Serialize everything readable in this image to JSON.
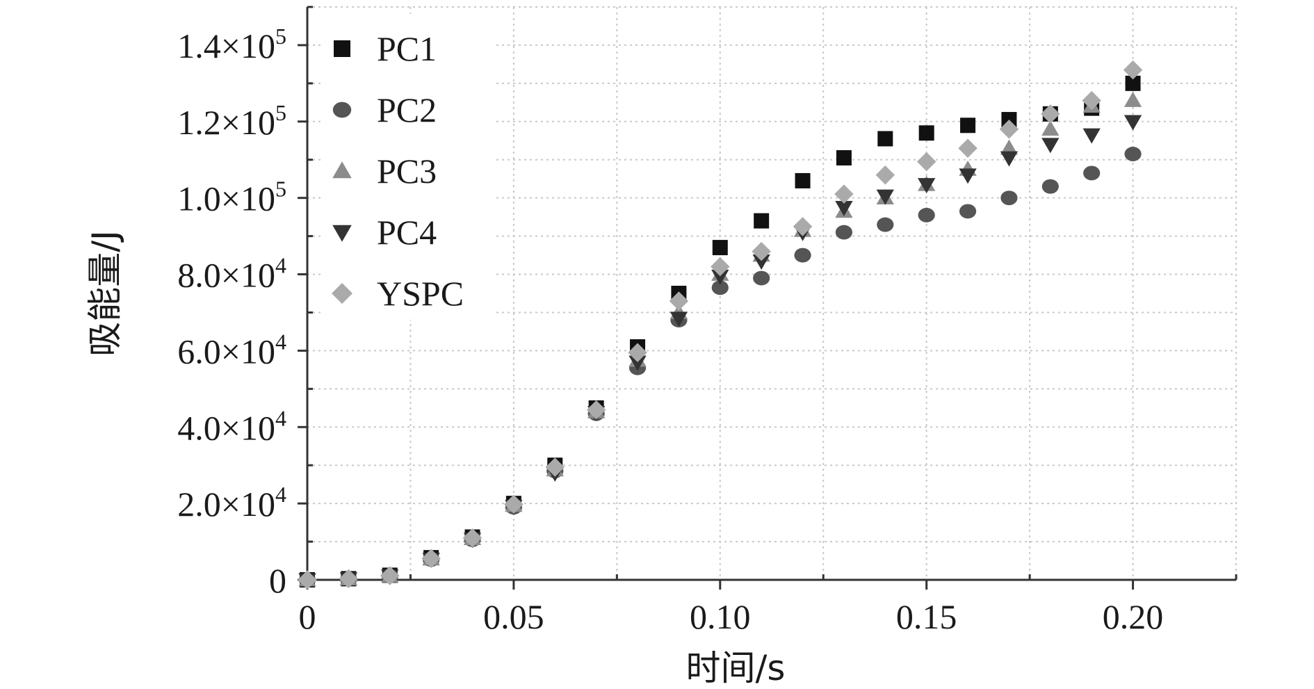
{
  "chart_data": {
    "type": "scatter",
    "title": "",
    "xlabel": "时间/s",
    "ylabel": "吸能量/J",
    "xlim": [
      0,
      0.225
    ],
    "ylim": [
      0,
      150000
    ],
    "grid": true,
    "legend_position": "top-left",
    "x_ticks": [
      {
        "value": 0,
        "label": "0"
      },
      {
        "value": 0.05,
        "label": "0.05"
      },
      {
        "value": 0.1,
        "label": "0.10"
      },
      {
        "value": 0.15,
        "label": "0.15"
      },
      {
        "value": 0.2,
        "label": "0.20"
      }
    ],
    "y_ticks": [
      {
        "value": 0,
        "mantissa": "0",
        "exponent": ""
      },
      {
        "value": 20000,
        "mantissa": "2.0×10",
        "exponent": "4"
      },
      {
        "value": 40000,
        "mantissa": "4.0×10",
        "exponent": "4"
      },
      {
        "value": 60000,
        "mantissa": "6.0×10",
        "exponent": "4"
      },
      {
        "value": 80000,
        "mantissa": "8.0×10",
        "exponent": "4"
      },
      {
        "value": 100000,
        "mantissa": "1.0×10",
        "exponent": "5"
      },
      {
        "value": 120000,
        "mantissa": "1.2×10",
        "exponent": "5"
      },
      {
        "value": 140000,
        "mantissa": "1.4×10",
        "exponent": "5"
      }
    ],
    "x": [
      0,
      0.01,
      0.02,
      0.03,
      0.04,
      0.05,
      0.06,
      0.07,
      0.08,
      0.09,
      0.1,
      0.11,
      0.12,
      0.13,
      0.14,
      0.15,
      0.16,
      0.17,
      0.18,
      0.19,
      0.2
    ],
    "series": [
      {
        "name": "PC1",
        "marker": "square",
        "color": "#111111",
        "values": [
          0,
          300,
          1200,
          5800,
          11200,
          20000,
          30000,
          45000,
          61000,
          75000,
          87000,
          94000,
          104500,
          110500,
          115500,
          117000,
          119000,
          120500,
          122000,
          123500,
          130000
        ]
      },
      {
        "name": "PC2",
        "marker": "circle",
        "color": "#555555",
        "values": [
          0,
          250,
          1000,
          5300,
          10500,
          19000,
          28500,
          43500,
          55500,
          68000,
          76500,
          79000,
          85000,
          91000,
          93000,
          95500,
          96500,
          100000,
          103000,
          106500,
          111500
        ]
      },
      {
        "name": "PC3",
        "marker": "triangle-up",
        "color": "#8c8c8c",
        "values": [
          0,
          250,
          1000,
          5500,
          10800,
          19500,
          28800,
          44000,
          57500,
          70000,
          80000,
          85000,
          91500,
          96500,
          100000,
          103500,
          107500,
          113000,
          118000,
          124000,
          125500
        ]
      },
      {
        "name": "PC4",
        "marker": "triangle-down",
        "color": "#333333",
        "values": [
          0,
          250,
          1000,
          5400,
          10600,
          19200,
          28000,
          43800,
          57000,
          68500,
          79500,
          83500,
          91000,
          97500,
          100500,
          103500,
          106000,
          110500,
          114000,
          116500,
          120000
        ]
      },
      {
        "name": "YSPC",
        "marker": "diamond",
        "color": "#aaaaaa",
        "values": [
          0,
          300,
          1100,
          5600,
          11000,
          19800,
          29500,
          44500,
          59500,
          73000,
          82000,
          86000,
          92500,
          101000,
          106000,
          109500,
          113000,
          118000,
          122000,
          125500,
          133500
        ]
      }
    ]
  }
}
